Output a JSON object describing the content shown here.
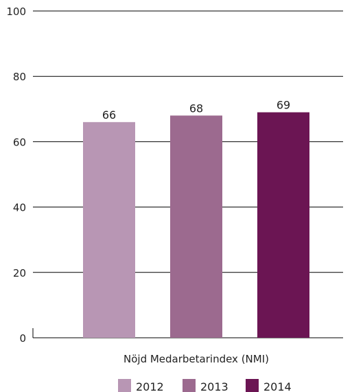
{
  "chart_data": {
    "type": "bar",
    "category_label": "Nöjd Medarbetarindex (NMI)",
    "series": [
      {
        "name": "2012",
        "value": 66,
        "color": "#b896b4"
      },
      {
        "name": "2013",
        "value": 68,
        "color": "#9c6a8f"
      },
      {
        "name": "2014",
        "value": 69,
        "color": "#6b1553"
      }
    ],
    "ylim": [
      0,
      100
    ],
    "yticks": [
      0,
      20,
      40,
      60,
      80,
      100
    ],
    "grid": true,
    "legend_position": "bottom"
  }
}
